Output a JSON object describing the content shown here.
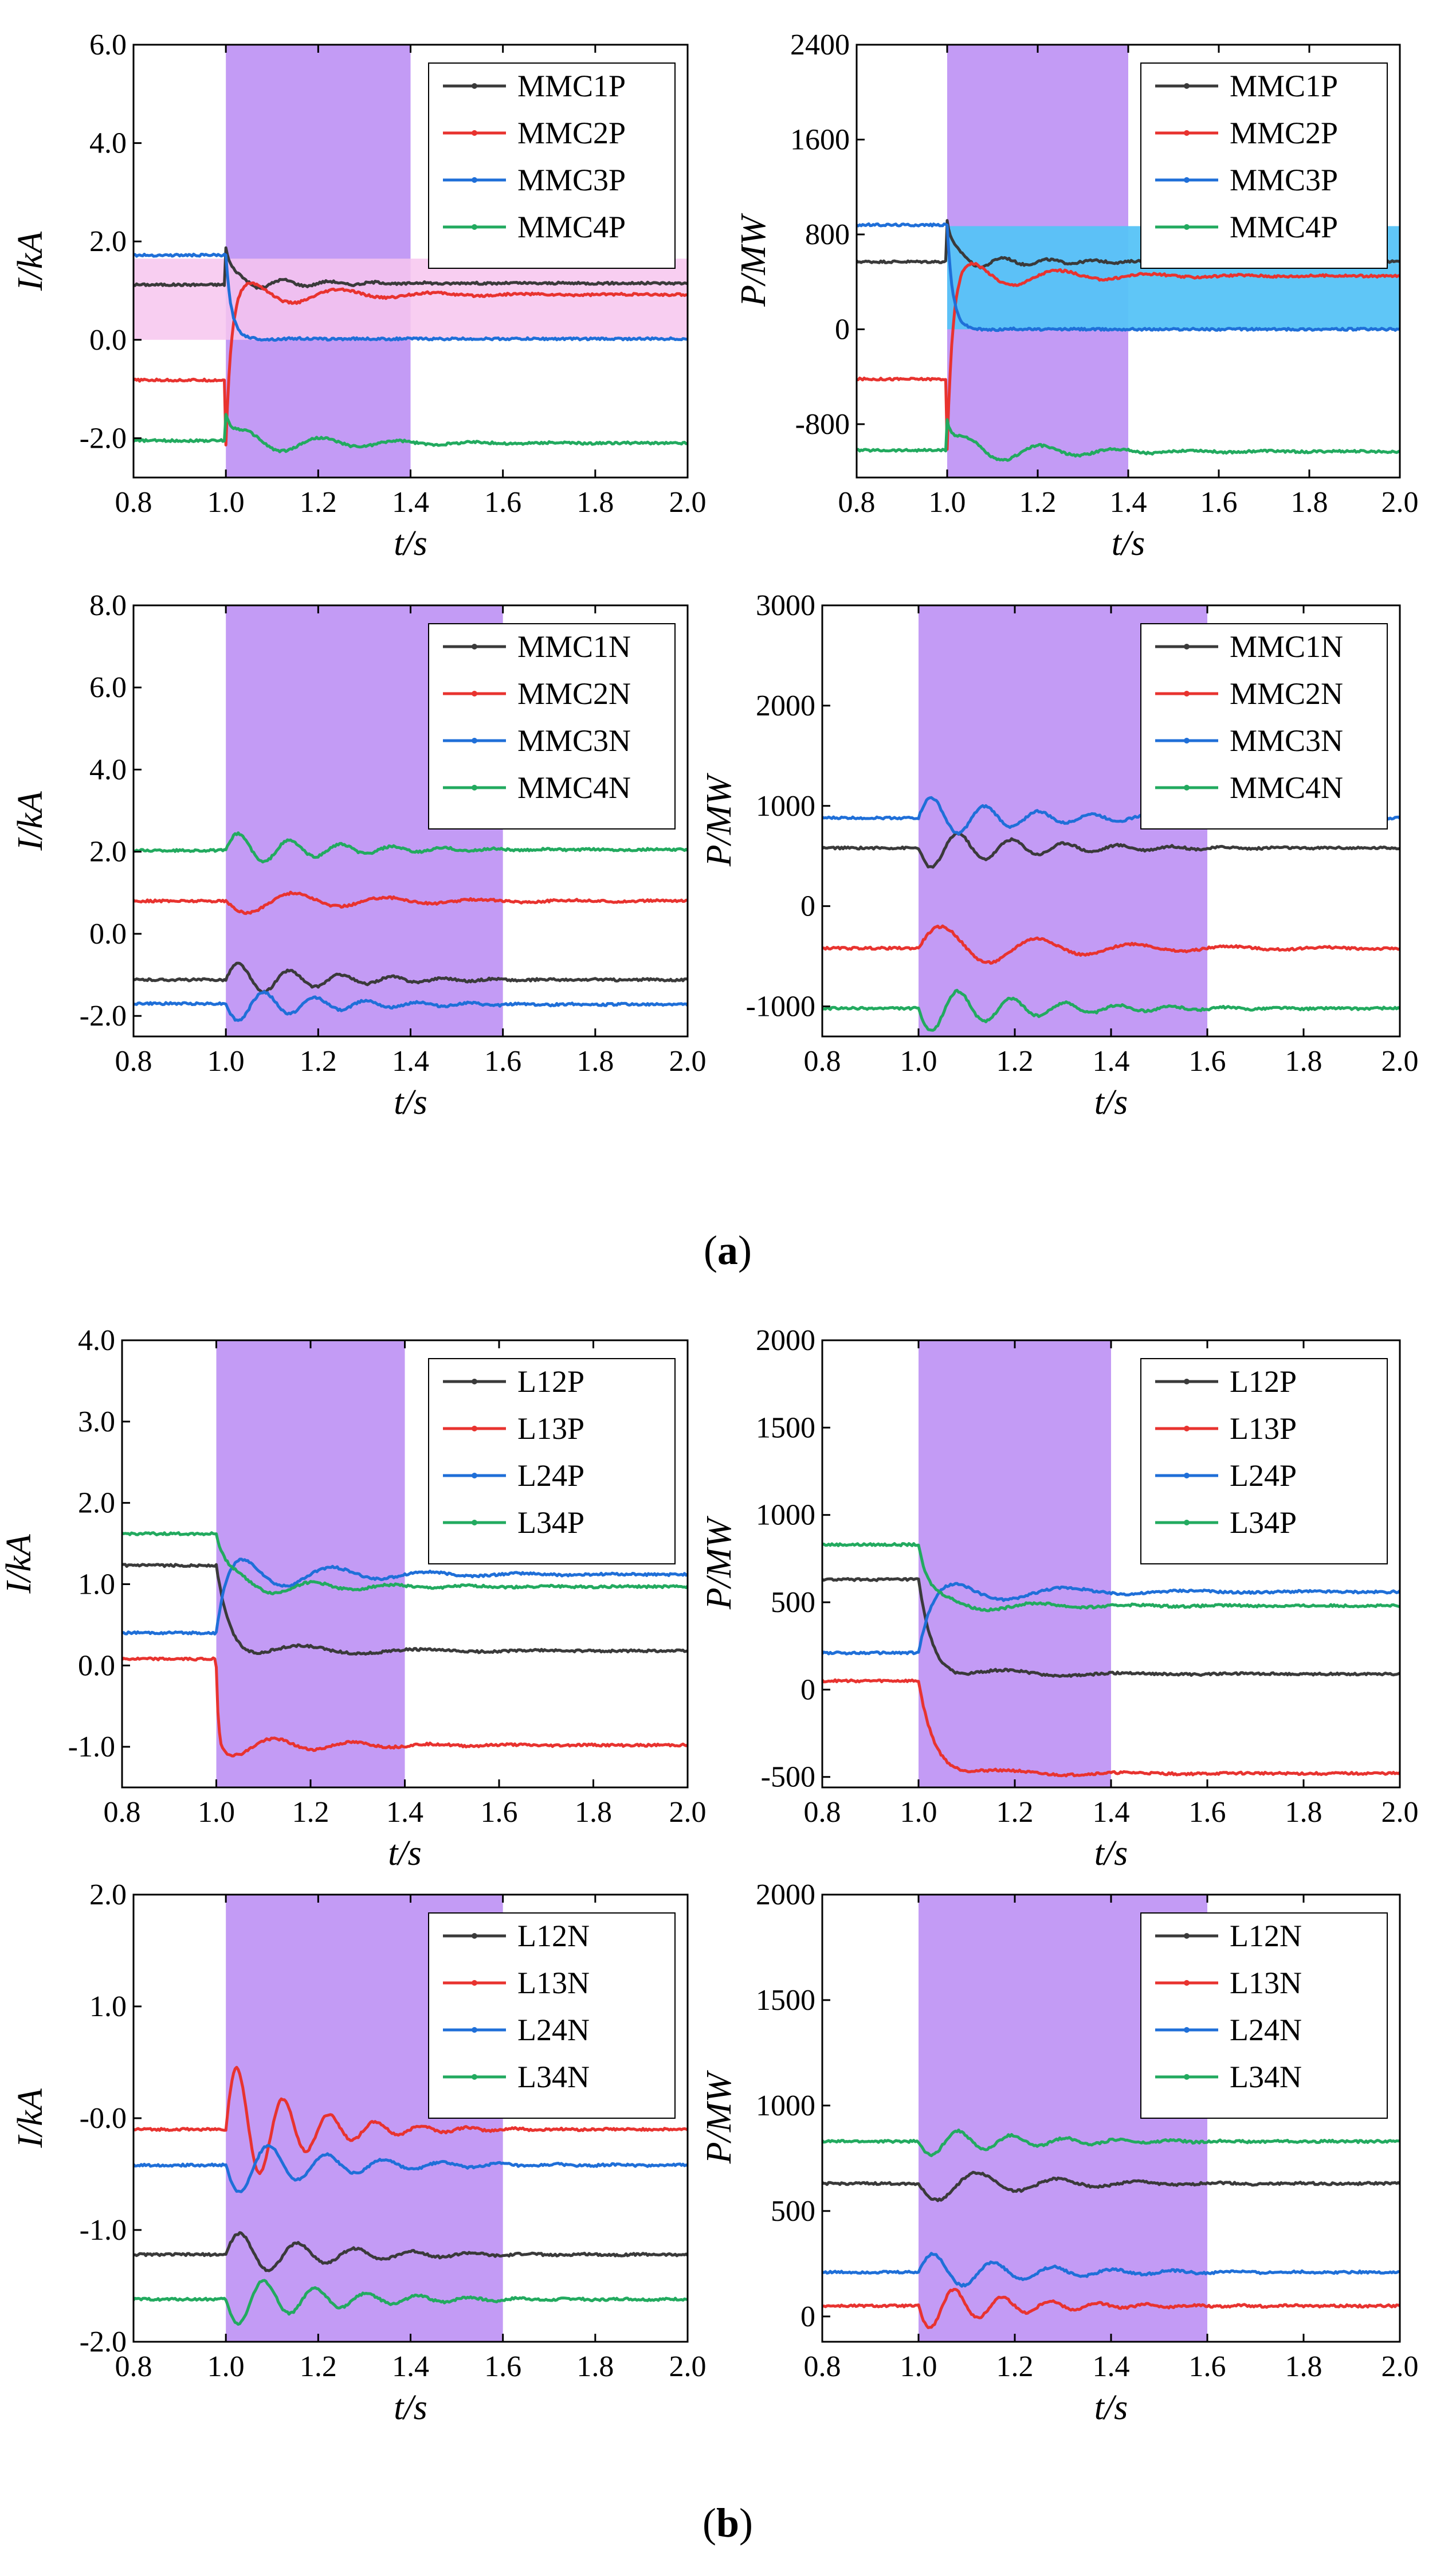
{
  "captions": {
    "a": {
      "open": "(",
      "letter": "a",
      "close": ")"
    },
    "b": {
      "open": "(",
      "letter": "b",
      "close": ")"
    }
  },
  "colors": {
    "black": "#3a3a3a",
    "red": "#e8332f",
    "blue": "#1f6fd8",
    "green": "#22aa5f",
    "band": "#c39bf5",
    "pink_box": "#f7c6ee",
    "cyan_box": "#56c3f7"
  },
  "chart_data": [
    {
      "id": "a1",
      "type": "line",
      "xlabel": "t/s",
      "ylabel": "I/kA",
      "xlim": [
        0.8,
        2.0
      ],
      "ylim": [
        -2.8,
        6.0
      ],
      "xticks": [
        "0.8",
        "1.0",
        "1.2",
        "1.4",
        "1.6",
        "1.8",
        "2.0"
      ],
      "yticks": [
        {
          "v": 6.0,
          "label": "6.0"
        },
        {
          "v": 4.0,
          "label": "4.0"
        },
        {
          "v": 2.0,
          "label": "2.0"
        },
        {
          "v": 0.0,
          "label": "0.0"
        },
        {
          "v": -2.0,
          "label": "-2.0"
        }
      ],
      "shaded_span": [
        1.0,
        1.4
      ],
      "highlight_box": {
        "x": [
          0.8,
          2.0
        ],
        "y": [
          0.0,
          1.65
        ],
        "color": "pink"
      },
      "legend": [
        "MMC1P",
        "MMC2P",
        "MMC3P",
        "MMC4P"
      ],
      "series": [
        {
          "name": "MMC1P",
          "color": "black",
          "pre": 1.12,
          "post": 1.15,
          "jump": 0.75,
          "amp": 0.15,
          "freq": 10,
          "damp": 6
        },
        {
          "name": "MMC2P",
          "color": "red",
          "pre": -0.82,
          "post": 0.92,
          "jump": -1.3,
          "amp": 0.35,
          "freq": 5,
          "damp": 5
        },
        {
          "name": "MMC3P",
          "color": "blue",
          "pre": 1.72,
          "post": 0.02,
          "jump": 0,
          "amp": 0.02,
          "freq": 8,
          "damp": 6
        },
        {
          "name": "MMC4P",
          "color": "green",
          "pre": -2.05,
          "post": -2.1,
          "jump": 0.55,
          "amp": 0.3,
          "freq": 6,
          "damp": 5
        }
      ]
    },
    {
      "id": "a2",
      "type": "line",
      "xlabel": "t/s",
      "ylabel": "P/MW",
      "xlim": [
        0.8,
        2.0
      ],
      "ylim": [
        -1250,
        2400
      ],
      "xticks": [
        "0.8",
        "1.0",
        "1.2",
        "1.4",
        "1.6",
        "1.8",
        "2.0"
      ],
      "yticks": [
        {
          "v": 2400,
          "label": "2400"
        },
        {
          "v": 1600,
          "label": "1600"
        },
        {
          "v": 800,
          "label": "800"
        },
        {
          "v": 0,
          "label": "0"
        },
        {
          "v": -800,
          "label": "-800"
        }
      ],
      "shaded_span": [
        1.0,
        1.4
      ],
      "highlight_box": {
        "x": [
          1.0,
          2.0
        ],
        "y": [
          0,
          870
        ],
        "color": "cyan"
      },
      "legend": [
        "MMC1P",
        "MMC2P",
        "MMC3P",
        "MMC4P"
      ],
      "series": [
        {
          "name": "MMC1P",
          "color": "black",
          "pre": 570,
          "post": 570,
          "jump": 350,
          "amp": 70,
          "freq": 10,
          "damp": 6
        },
        {
          "name": "MMC2P",
          "color": "red",
          "pre": -420,
          "post": 450,
          "jump": -600,
          "amp": 160,
          "freq": 5,
          "damp": 5
        },
        {
          "name": "MMC3P",
          "color": "blue",
          "pre": 880,
          "post": 0,
          "jump": 0,
          "amp": 8,
          "freq": 8,
          "damp": 6
        },
        {
          "name": "MMC4P",
          "color": "green",
          "pre": -1020,
          "post": -1030,
          "jump": 250,
          "amp": 140,
          "freq": 6,
          "damp": 5
        }
      ]
    },
    {
      "id": "a3",
      "type": "line",
      "xlabel": "t/s",
      "ylabel": "I/kA",
      "xlim": [
        0.8,
        2.0
      ],
      "ylim": [
        -2.5,
        8.0
      ],
      "xticks": [
        "0.8",
        "1.0",
        "1.2",
        "1.4",
        "1.6",
        "1.8",
        "2.0"
      ],
      "yticks": [
        {
          "v": 8.0,
          "label": "8.0"
        },
        {
          "v": 6.0,
          "label": "6.0"
        },
        {
          "v": 4.0,
          "label": "4.0"
        },
        {
          "v": 2.0,
          "label": "2.0"
        },
        {
          "v": 0.0,
          "label": "0.0"
        },
        {
          "v": -2.0,
          "label": "-2.0"
        }
      ],
      "shaded_span": [
        1.0,
        1.6
      ],
      "legend": [
        "MMC1N",
        "MMC2N",
        "MMC3N",
        "MMC4N"
      ],
      "series": [
        {
          "name": "MMC1N",
          "color": "black",
          "pre": -1.12,
          "post": -1.12,
          "jump": 0,
          "amp": 0.45,
          "freq": 9,
          "damp": 5
        },
        {
          "name": "MMC2N",
          "color": "red",
          "pre": 0.8,
          "post": 0.8,
          "jump": 0,
          "amp": -0.35,
          "freq": 5,
          "damp": 4
        },
        {
          "name": "MMC3N",
          "color": "blue",
          "pre": -1.7,
          "post": -1.72,
          "jump": 0,
          "amp": -0.45,
          "freq": 9,
          "damp": 5
        },
        {
          "name": "MMC4N",
          "color": "green",
          "pre": 2.03,
          "post": 2.05,
          "jump": 0,
          "amp": 0.45,
          "freq": 9,
          "damp": 5
        }
      ]
    },
    {
      "id": "a4",
      "type": "line",
      "xlabel": "t/s",
      "ylabel": "P/MW",
      "xlim": [
        0.8,
        2.0
      ],
      "ylim": [
        -1300,
        3000
      ],
      "xticks": [
        "0.8",
        "1.0",
        "1.2",
        "1.4",
        "1.6",
        "1.8",
        "2.0"
      ],
      "yticks": [
        {
          "v": 3000,
          "label": "3000"
        },
        {
          "v": 2000,
          "label": "2000"
        },
        {
          "v": 1000,
          "label": "1000"
        },
        {
          "v": 0,
          "label": "0"
        },
        {
          "v": -1000,
          "label": "-1000"
        }
      ],
      "shaded_span": [
        1.0,
        1.6
      ],
      "legend": [
        "MMC1N",
        "MMC2N",
        "MMC3N",
        "MMC4N"
      ],
      "series": [
        {
          "name": "MMC1N",
          "color": "black",
          "pre": 580,
          "post": 580,
          "jump": 0,
          "amp": -220,
          "freq": 9,
          "damp": 5
        },
        {
          "name": "MMC2N",
          "color": "red",
          "pre": -420,
          "post": -420,
          "jump": 0,
          "amp": 260,
          "freq": 5,
          "damp": 4
        },
        {
          "name": "MMC3N",
          "color": "blue",
          "pre": 880,
          "post": 880,
          "jump": 0,
          "amp": 230,
          "freq": 9,
          "damp": 5
        },
        {
          "name": "MMC4N",
          "color": "green",
          "pre": -1020,
          "post": -1020,
          "jump": 0,
          "amp": -260,
          "freq": 9,
          "damp": 5
        }
      ]
    },
    {
      "id": "b1",
      "type": "line",
      "xlabel": "t/s",
      "ylabel": "I/kA",
      "xlim": [
        0.8,
        2.0
      ],
      "ylim": [
        -1.5,
        4.0
      ],
      "xticks": [
        "0.8",
        "1.0",
        "1.2",
        "1.4",
        "1.6",
        "1.8",
        "2.0"
      ],
      "yticks": [
        {
          "v": 4.0,
          "label": "4.0"
        },
        {
          "v": 3.0,
          "label": "3.0"
        },
        {
          "v": 2.0,
          "label": "2.0"
        },
        {
          "v": 1.0,
          "label": "1.0"
        },
        {
          "v": 0.0,
          "label": "0.0"
        },
        {
          "v": -1.0,
          "label": "-1.0"
        }
      ],
      "shaded_span": [
        1.0,
        1.4
      ],
      "legend": [
        "L12P",
        "L13P",
        "L24P",
        "L34P"
      ],
      "series": [
        {
          "name": "L12P",
          "color": "black",
          "pre": 1.23,
          "post": 0.18,
          "jump": 0,
          "amp": -0.15,
          "freq": 4,
          "damp": 5,
          "tau": 0.03
        },
        {
          "name": "L13P",
          "color": "red",
          "pre": 0.08,
          "post": -0.98,
          "jump": -0.1,
          "amp": -0.15,
          "freq": 6,
          "damp": 5,
          "tau": 0.004
        },
        {
          "name": "L24P",
          "color": "blue",
          "pre": 0.4,
          "post": 1.12,
          "jump": 0,
          "amp": 0.3,
          "freq": 5,
          "damp": 5,
          "tau": 0.02
        },
        {
          "name": "L34P",
          "color": "green",
          "pre": 1.62,
          "post": 0.97,
          "jump": 0,
          "amp": 0.15,
          "freq": 6,
          "damp": 5,
          "tau": 0.02
        }
      ]
    },
    {
      "id": "b2",
      "type": "line",
      "xlabel": "t/s",
      "ylabel": "P/MW",
      "xlim": [
        0.8,
        2.0
      ],
      "ylim": [
        -560,
        2000
      ],
      "xticks": [
        "0.8",
        "1.0",
        "1.2",
        "1.4",
        "1.6",
        "1.8",
        "2.0"
      ],
      "yticks": [
        {
          "v": 2000,
          "label": "2000"
        },
        {
          "v": 1500,
          "label": "1500"
        },
        {
          "v": 1000,
          "label": "1000"
        },
        {
          "v": 500,
          "label": "500"
        },
        {
          "v": 0,
          "label": "0"
        },
        {
          "v": -500,
          "label": "-500"
        }
      ],
      "shaded_span": [
        1.0,
        1.4
      ],
      "legend": [
        "L12P",
        "L13P",
        "L24P",
        "L34P"
      ],
      "series": [
        {
          "name": "L12P",
          "color": "black",
          "pre": 630,
          "post": 90,
          "jump": 0,
          "amp": -50,
          "freq": 4,
          "damp": 5,
          "tau": 0.03
        },
        {
          "name": "L13P",
          "color": "red",
          "pre": 50,
          "post": -480,
          "jump": 0,
          "amp": -40,
          "freq": 4,
          "damp": 5,
          "tau": 0.035
        },
        {
          "name": "L24P",
          "color": "blue",
          "pre": 210,
          "post": 560,
          "jump": 0,
          "amp": 110,
          "freq": 4,
          "damp": 5,
          "tau": 0.03
        },
        {
          "name": "L34P",
          "color": "green",
          "pre": 830,
          "post": 480,
          "jump": 0,
          "amp": 50,
          "freq": 5,
          "damp": 5,
          "tau": 0.02
        }
      ]
    },
    {
      "id": "b3",
      "type": "line",
      "xlabel": "t/s",
      "ylabel": "I/kA",
      "xlim": [
        0.8,
        2.0
      ],
      "ylim": [
        -2.0,
        2.0
      ],
      "xticks": [
        "0.8",
        "1.0",
        "1.2",
        "1.4",
        "1.6",
        "1.8",
        "2.0"
      ],
      "yticks": [
        {
          "v": 2.0,
          "label": "2.0"
        },
        {
          "v": 1.0,
          "label": "1.0"
        },
        {
          "v": 0.0,
          "label": "-0.0"
        },
        {
          "v": -1.0,
          "label": "-1.0"
        },
        {
          "v": -2.0,
          "label": "-2.0"
        }
      ],
      "shaded_span": [
        1.0,
        1.6
      ],
      "legend": [
        "L12N",
        "L13N",
        "L24N",
        "L34N"
      ],
      "series": [
        {
          "name": "L12N",
          "color": "black",
          "pre": -1.22,
          "post": -1.22,
          "jump": 0,
          "amp": 0.22,
          "freq": 8,
          "damp": 5
        },
        {
          "name": "L13N",
          "color": "red",
          "pre": -0.1,
          "post": -0.1,
          "jump": 0,
          "amp": 0.65,
          "freq": 10,
          "damp": 7
        },
        {
          "name": "L24N",
          "color": "blue",
          "pre": -0.42,
          "post": -0.42,
          "jump": 0,
          "amp": -0.28,
          "freq": 8,
          "damp": 5
        },
        {
          "name": "L34N",
          "color": "green",
          "pre": -1.62,
          "post": -1.62,
          "jump": 0,
          "amp": -0.25,
          "freq": 9,
          "damp": 5
        }
      ]
    },
    {
      "id": "b4",
      "type": "line",
      "xlabel": "t/s",
      "ylabel": "P/MW",
      "xlim": [
        0.8,
        2.0
      ],
      "ylim": [
        -120,
        2000
      ],
      "xticks": [
        "0.8",
        "1.0",
        "1.2",
        "1.4",
        "1.6",
        "1.8",
        "2.0"
      ],
      "yticks": [
        {
          "v": 2000,
          "label": "2000"
        },
        {
          "v": 1500,
          "label": "1500"
        },
        {
          "v": 1000,
          "label": "1000"
        },
        {
          "v": 500,
          "label": "500"
        },
        {
          "v": 0,
          "label": "0"
        }
      ],
      "shaded_span": [
        1.0,
        1.6
      ],
      "legend": [
        "L12N",
        "L13N",
        "L24N",
        "L34N"
      ],
      "series": [
        {
          "name": "L12N",
          "color": "black",
          "pre": 630,
          "post": 630,
          "jump": 0,
          "amp": -95,
          "freq": 6,
          "damp": 5
        },
        {
          "name": "L13N",
          "color": "red",
          "pre": 50,
          "post": 50,
          "jump": 0,
          "amp": -120,
          "freq": 10,
          "damp": 6
        },
        {
          "name": "L24N",
          "color": "blue",
          "pre": 210,
          "post": 210,
          "jump": 0,
          "amp": 100,
          "freq": 8,
          "damp": 5
        },
        {
          "name": "L34N",
          "color": "green",
          "pre": 830,
          "post": 830,
          "jump": 0,
          "amp": -75,
          "freq": 9,
          "damp": 5
        }
      ]
    }
  ]
}
